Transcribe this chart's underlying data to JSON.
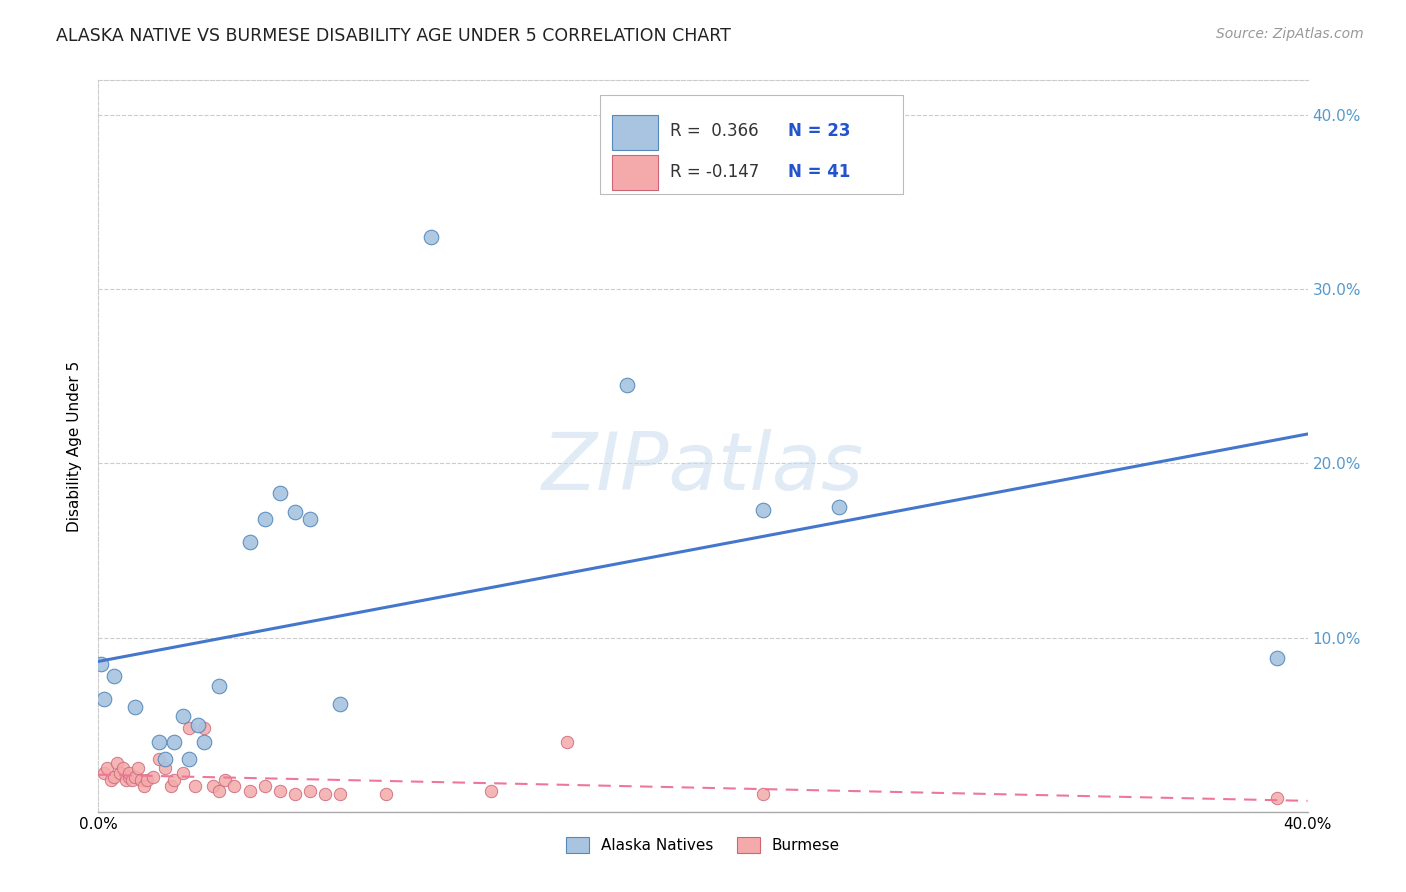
{
  "title": "ALASKA NATIVE VS BURMESE DISABILITY AGE UNDER 5 CORRELATION CHART",
  "source": "Source: ZipAtlas.com",
  "ylabel": "Disability Age Under 5",
  "watermark": "ZIPatlas",
  "legend_label_blue": "Alaska Natives",
  "legend_label_pink": "Burmese",
  "xlim": [
    0.0,
    0.4
  ],
  "ylim": [
    0.0,
    0.42
  ],
  "yticks": [
    0.0,
    0.1,
    0.2,
    0.3,
    0.4
  ],
  "blue_scatter_color": "#A8C4E0",
  "blue_scatter_edge": "#5588BB",
  "pink_scatter_color": "#F4AAAA",
  "pink_scatter_edge": "#CC6677",
  "line_blue_color": "#4477CC",
  "line_pink_color": "#EE7799",
  "alaska_x": [
    0.001,
    0.005,
    0.012,
    0.02,
    0.022,
    0.025,
    0.028,
    0.03,
    0.033,
    0.035,
    0.04,
    0.05,
    0.055,
    0.06,
    0.065,
    0.07,
    0.08,
    0.11,
    0.175,
    0.22,
    0.245,
    0.39,
    0.002
  ],
  "alaska_y": [
    0.085,
    0.078,
    0.06,
    0.04,
    0.03,
    0.04,
    0.055,
    0.03,
    0.05,
    0.04,
    0.072,
    0.155,
    0.168,
    0.183,
    0.172,
    0.168,
    0.062,
    0.33,
    0.245,
    0.173,
    0.175,
    0.088,
    0.065
  ],
  "burmese_x": [
    0.002,
    0.003,
    0.004,
    0.005,
    0.006,
    0.007,
    0.008,
    0.009,
    0.01,
    0.01,
    0.011,
    0.012,
    0.013,
    0.014,
    0.015,
    0.016,
    0.018,
    0.02,
    0.022,
    0.024,
    0.025,
    0.028,
    0.03,
    0.032,
    0.035,
    0.038,
    0.04,
    0.042,
    0.045,
    0.05,
    0.055,
    0.06,
    0.065,
    0.07,
    0.075,
    0.08,
    0.095,
    0.13,
    0.155,
    0.22,
    0.39
  ],
  "burmese_y": [
    0.022,
    0.025,
    0.018,
    0.02,
    0.028,
    0.022,
    0.025,
    0.018,
    0.02,
    0.022,
    0.018,
    0.02,
    0.025,
    0.018,
    0.015,
    0.018,
    0.02,
    0.03,
    0.025,
    0.015,
    0.018,
    0.022,
    0.048,
    0.015,
    0.048,
    0.015,
    0.012,
    0.018,
    0.015,
    0.012,
    0.015,
    0.012,
    0.01,
    0.012,
    0.01,
    0.01,
    0.01,
    0.012,
    0.04,
    0.01,
    0.008
  ]
}
